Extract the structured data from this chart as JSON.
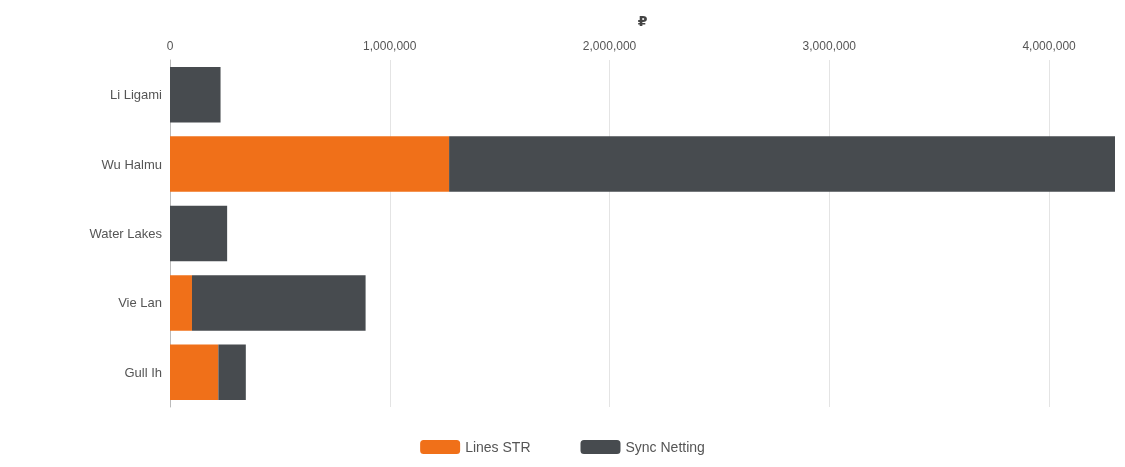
{
  "chart_data": {
    "type": "bar",
    "orientation": "horizontal",
    "stacked": true,
    "xlabel": "₽",
    "categories": [
      "Li Ligami",
      "Wu Halmu",
      "Water Lakes",
      "Vie Lan",
      "Gull Ih"
    ],
    "series": [
      {
        "name": "Lines STR",
        "color": "#f07019",
        "values": [
          0,
          1270000,
          0,
          100000,
          220000
        ]
      },
      {
        "name": "Sync Netting",
        "color": "#474b4f",
        "values": [
          230000,
          3030000,
          260000,
          790000,
          125000
        ]
      }
    ],
    "xlim": [
      0,
      4300000
    ],
    "xticks": [
      {
        "value": 0,
        "label": "0"
      },
      {
        "value": 1000000,
        "label": "1,000,000"
      },
      {
        "value": 2000000,
        "label": "2,000,000"
      },
      {
        "value": 3000000,
        "label": "3,000,000"
      },
      {
        "value": 4000000,
        "label": "4,000,000"
      }
    ],
    "grid": "x",
    "legend": "bottom"
  }
}
